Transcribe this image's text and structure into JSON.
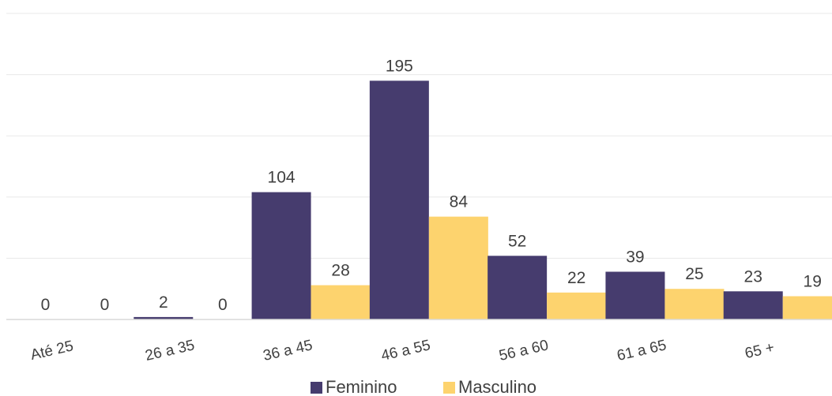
{
  "chart_data": {
    "type": "bar",
    "categories": [
      "Até 25",
      "26 a 35",
      "36 a 45",
      "46 a 55",
      "56 a 60",
      "61 a 65",
      "65 +"
    ],
    "series": [
      {
        "name": "Feminino",
        "color": "#463c6e",
        "values": [
          0,
          2,
          104,
          195,
          52,
          39,
          23
        ]
      },
      {
        "name": "Masculino",
        "color": "#fdd36e",
        "values": [
          0,
          0,
          28,
          84,
          22,
          25,
          19
        ]
      }
    ],
    "title": "",
    "xlabel": "",
    "ylabel": "",
    "ylim": [
      0,
      250
    ],
    "gridlines": true,
    "y_tick_labels_shown": false,
    "data_labels": true,
    "legend_position": "bottom"
  }
}
